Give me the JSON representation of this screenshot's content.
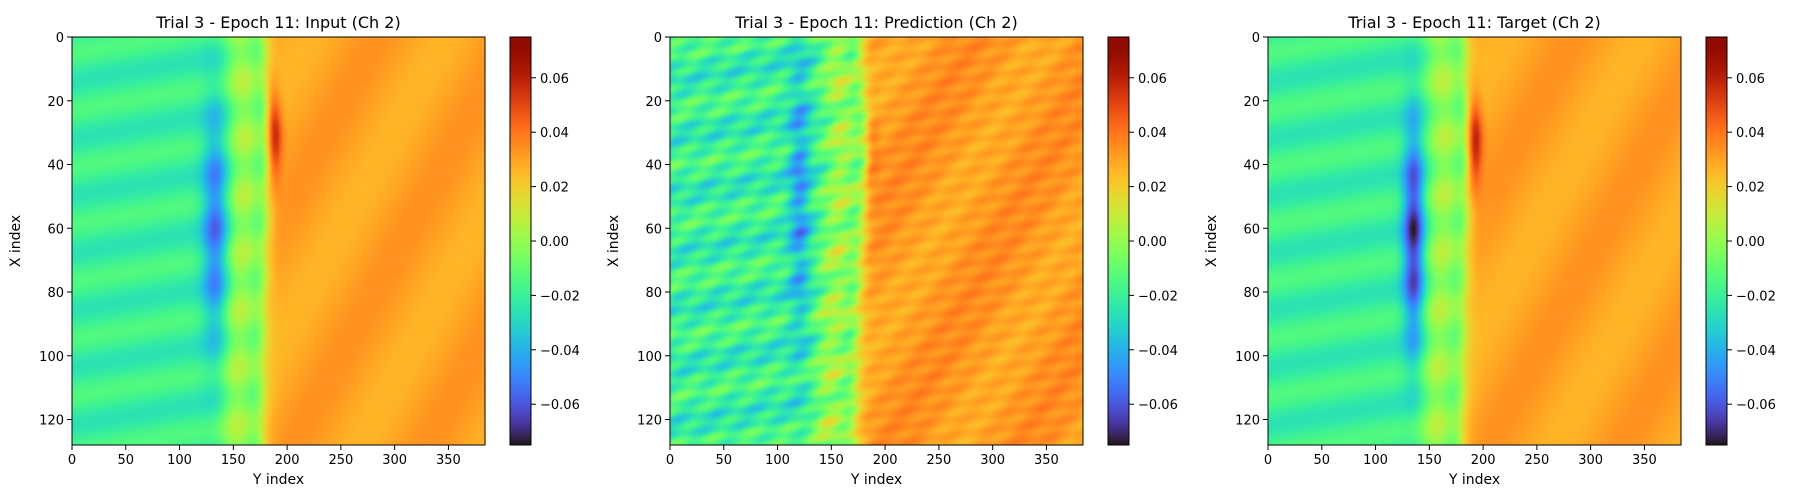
{
  "figure": {
    "panel_count": 3
  },
  "chart_data": [
    {
      "type": "heatmap",
      "title": "Trial 3 - Epoch 11: Input (Ch 2)",
      "xlabel": "Y index",
      "ylabel": "X index",
      "x_range": [
        0,
        384
      ],
      "y_range": [
        0,
        128
      ],
      "xticks": [
        0,
        50,
        100,
        150,
        200,
        250,
        300,
        350
      ],
      "yticks": [
        0,
        20,
        40,
        60,
        80,
        100,
        120
      ],
      "colormap": "turbo",
      "colorbar": {
        "vmin": -0.075,
        "vmax": 0.075,
        "ticks": [
          -0.06,
          -0.04,
          -0.02,
          0.0,
          0.02,
          0.04,
          0.06
        ],
        "tick_labels": [
          "−0.06",
          "−0.04",
          "−0.02",
          "0.00",
          "0.02",
          "0.04",
          "0.06"
        ]
      },
      "field": {
        "left_value": -0.02,
        "right_value": 0.03,
        "front": [
          [
            0,
            178
          ],
          [
            30,
            182
          ],
          [
            60,
            180
          ],
          [
            100,
            176
          ],
          [
            128,
            175
          ]
        ],
        "vortex_low": {
          "center_row": 60,
          "center_col": 133,
          "width_cols": 12,
          "half_height_rows": 38,
          "peak": -0.055
        },
        "vortex_high": {
          "center_row": 30,
          "peak": 0.066
        }
      }
    },
    {
      "type": "heatmap",
      "title": "Trial 3 - Epoch 11: Prediction (Ch 2)",
      "xlabel": "Y index",
      "ylabel": "X index",
      "x_range": [
        0,
        384
      ],
      "y_range": [
        0,
        128
      ],
      "xticks": [
        0,
        50,
        100,
        150,
        200,
        250,
        300,
        350
      ],
      "yticks": [
        0,
        20,
        40,
        60,
        80,
        100,
        120
      ],
      "colormap": "turbo",
      "colorbar": {
        "vmin": -0.075,
        "vmax": 0.075,
        "ticks": [
          -0.06,
          -0.04,
          -0.02,
          0.0,
          0.02,
          0.04,
          0.06
        ],
        "tick_labels": [
          "−0.06",
          "−0.04",
          "−0.02",
          "0.00",
          "0.02",
          "0.04",
          "0.06"
        ]
      },
      "field": {
        "left_value": -0.02,
        "right_value": 0.032,
        "front": [
          [
            0,
            175
          ],
          [
            30,
            182
          ],
          [
            60,
            178
          ],
          [
            100,
            172
          ],
          [
            128,
            170
          ]
        ],
        "vortex_low": {
          "center_row": 50,
          "center_col": 120,
          "width_cols": 10,
          "half_height_rows": 45,
          "peak": -0.045
        },
        "vortex_high": {
          "center_row": 35,
          "peak": 0.045
        },
        "noise": 0.012
      }
    },
    {
      "type": "heatmap",
      "title": "Trial 3 - Epoch 11: Target (Ch 2)",
      "xlabel": "Y index",
      "ylabel": "X index",
      "x_range": [
        0,
        384
      ],
      "y_range": [
        0,
        128
      ],
      "xticks": [
        0,
        50,
        100,
        150,
        200,
        250,
        300,
        350
      ],
      "yticks": [
        0,
        20,
        40,
        60,
        80,
        100,
        120
      ],
      "colormap": "turbo",
      "colorbar": {
        "vmin": -0.075,
        "vmax": 0.075,
        "ticks": [
          -0.06,
          -0.04,
          -0.02,
          0.0,
          0.02,
          0.04,
          0.06
        ],
        "tick_labels": [
          "−0.06",
          "−0.04",
          "−0.02",
          "0.00",
          "0.02",
          "0.04",
          "0.06"
        ]
      },
      "field": {
        "left_value": -0.02,
        "right_value": 0.03,
        "front": [
          [
            0,
            182
          ],
          [
            30,
            186
          ],
          [
            60,
            184
          ],
          [
            100,
            180
          ],
          [
            128,
            178
          ]
        ],
        "vortex_low": {
          "center_row": 62,
          "center_col": 135,
          "width_cols": 10,
          "half_height_rows": 36,
          "peak": -0.07
        },
        "vortex_high": {
          "center_row": 32,
          "peak": 0.068
        }
      }
    }
  ]
}
